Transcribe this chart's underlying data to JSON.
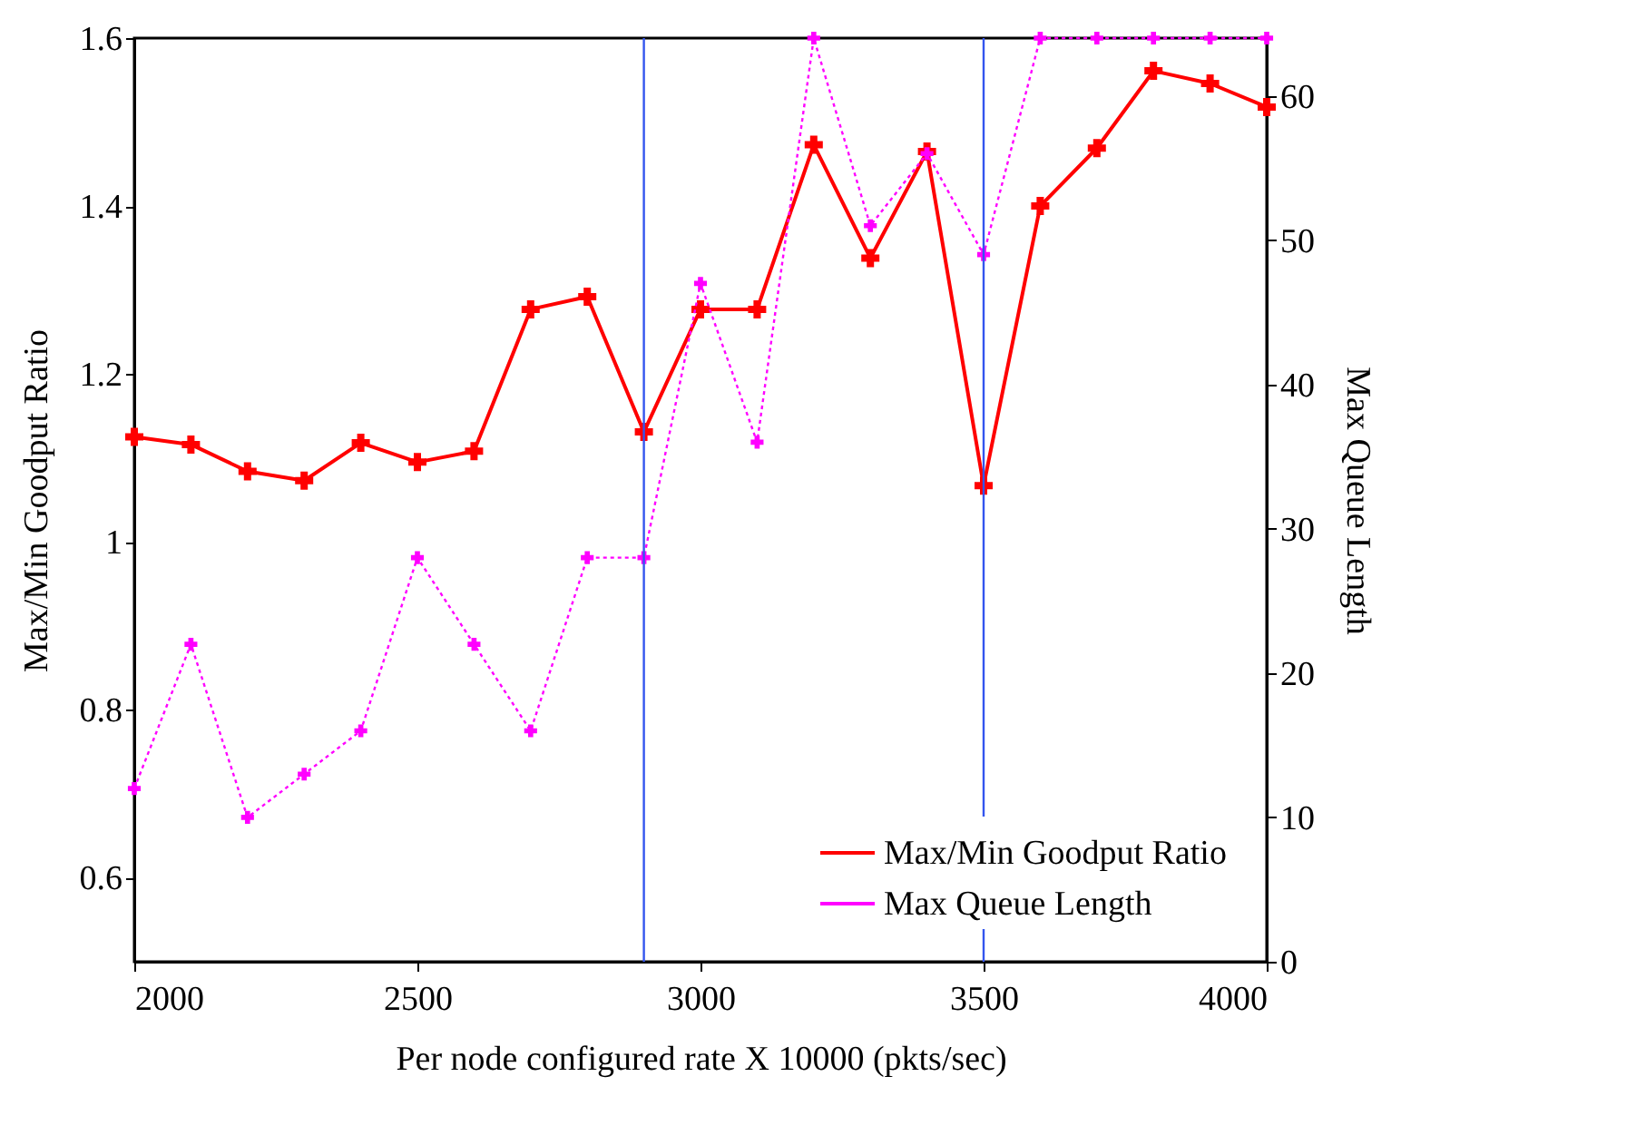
{
  "chart_data": {
    "type": "line",
    "xlabel": "Per node configured rate X 10000 (pkts/sec)",
    "ylabel": "Max/Min Goodput Ratio",
    "y2label": "Max Queue Length",
    "x": [
      2000,
      2100,
      2200,
      2300,
      2400,
      2500,
      2600,
      2700,
      2800,
      2900,
      3000,
      3100,
      3200,
      3300,
      3400,
      3500,
      3600,
      3700,
      3800,
      3900,
      4000
    ],
    "series": [
      {
        "name": "Max/Min Goodput Ratio",
        "color": "#ff0000",
        "marker": "cross",
        "line_style": "solid",
        "values": [
          1.125,
          1.116,
          1.084,
          1.073,
          1.118,
          1.095,
          1.108,
          1.277,
          1.292,
          1.131,
          1.277,
          1.277,
          1.473,
          1.338,
          1.465,
          1.067,
          1.4,
          1.469,
          1.561,
          1.546,
          1.518
        ]
      },
      {
        "name": "Max Queue Length",
        "color": "#ff00ff",
        "marker": "cross",
        "line_style": "dotted",
        "axis": "y2",
        "values": [
          12,
          22,
          10,
          13,
          16,
          28,
          22,
          16,
          28,
          28,
          47,
          36,
          64,
          51,
          56,
          49,
          64,
          64,
          64,
          64,
          64
        ]
      }
    ],
    "xlim": [
      2000,
      4000
    ],
    "xticks": [
      2000,
      2500,
      3000,
      3500,
      4000
    ],
    "ylim": [
      0.5,
      1.6
    ],
    "yticks": [
      0.6,
      0.8,
      1,
      1.2,
      1.4,
      1.6
    ],
    "y2lim": [
      0,
      64
    ],
    "y2ticks": [
      0,
      10,
      20,
      30,
      40,
      50,
      60
    ],
    "ref_lines": [
      {
        "axis": "x",
        "value": 2900,
        "color": "#3355ee"
      },
      {
        "axis": "x",
        "value": 3500,
        "color": "#3355ee"
      }
    ],
    "grid": false,
    "legend": "bottom right"
  }
}
